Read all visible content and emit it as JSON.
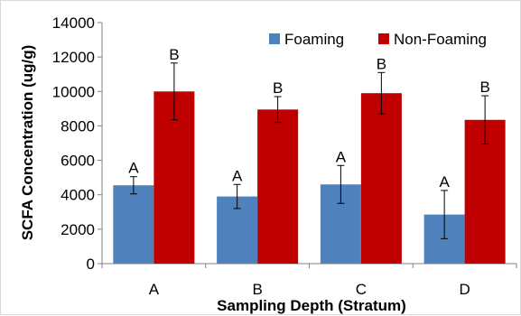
{
  "chart_data": {
    "type": "bar",
    "title": "",
    "xlabel": "Sampling Depth (Stratum)",
    "ylabel": "SCFA Concentration (ug/g)",
    "ylim": [
      0,
      14000
    ],
    "yticks": [
      0,
      2000,
      4000,
      6000,
      8000,
      10000,
      12000,
      14000
    ],
    "yticks_labels": [
      "0",
      "2000",
      "4000",
      "6000",
      "8000",
      "10000",
      "12000",
      "14000"
    ],
    "grid": false,
    "legend_position": "top-right",
    "categories": [
      "A",
      "B",
      "C",
      "D"
    ],
    "series": [
      {
        "name": "Foaming",
        "color": "#4f81bd",
        "values": [
          4550,
          3900,
          4600,
          2850
        ],
        "error": [
          500,
          700,
          1100,
          1400
        ],
        "labels": [
          "A",
          "A",
          "A",
          "A"
        ]
      },
      {
        "name": "Non-Foaming",
        "color": "#c00000",
        "values": [
          10000,
          8950,
          9900,
          8350
        ],
        "error": [
          1650,
          750,
          1200,
          1400
        ],
        "labels": [
          "B",
          "B",
          "B",
          "B"
        ]
      }
    ]
  }
}
